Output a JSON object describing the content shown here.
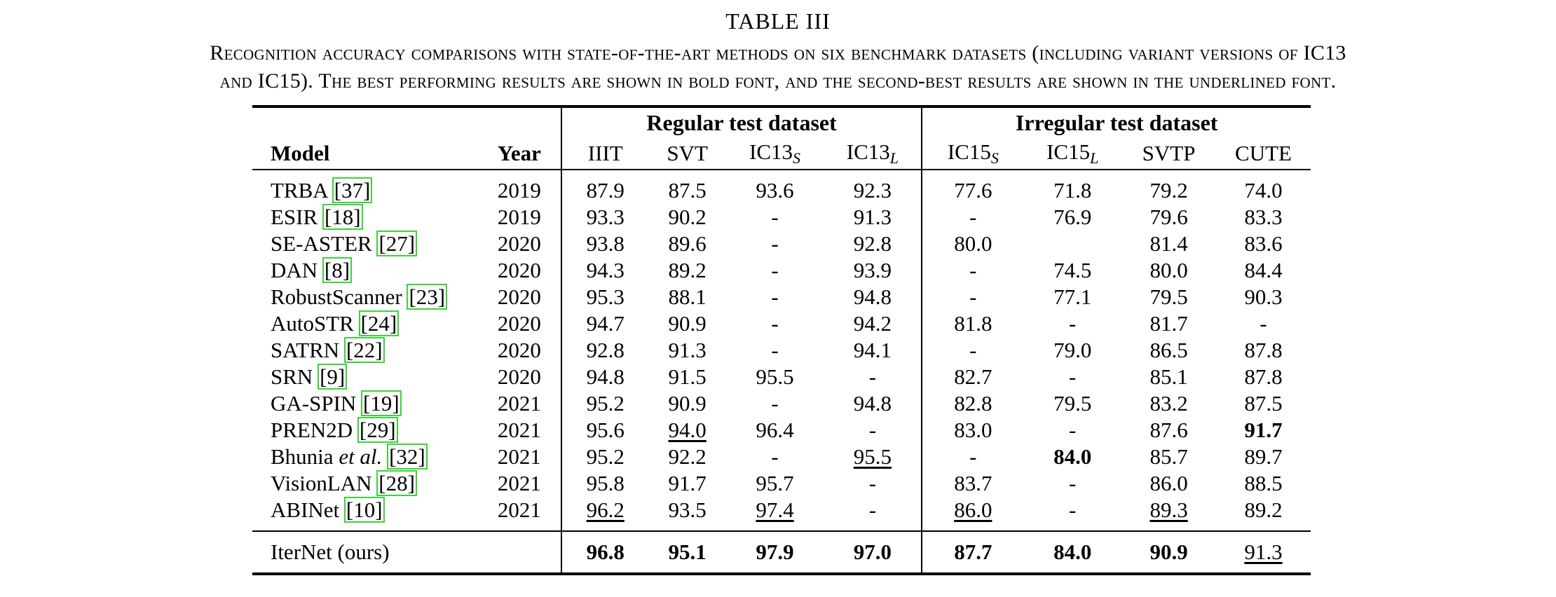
{
  "table_label": "TABLE III",
  "caption_line1": "Recognition accuracy comparisons with state-of-the-art methods on six benchmark datasets (including variant versions of IC13",
  "caption_line2": "and IC15). The best performing results are shown in bold font, and the second-best results are shown in the underlined font.",
  "group_headers": {
    "regular": "Regular test dataset",
    "irregular": "Irregular test dataset"
  },
  "columns": {
    "model": "Model",
    "year": "Year",
    "iiit": "IIIT",
    "svt": "SVT",
    "ic13": "IC13",
    "ic13s_sub": "S",
    "ic13l_sub": "L",
    "ic15": "IC15",
    "ic15s_sub": "S",
    "ic15l_sub": "L",
    "svtp": "SVTP",
    "cute": "CUTE"
  },
  "rows": [
    {
      "name": "TRBA",
      "ref": "[37]",
      "year": "2019",
      "v": [
        "87.9",
        "87.5",
        "93.6",
        "92.3",
        "77.6",
        "71.8",
        "79.2",
        "74.0"
      ]
    },
    {
      "name": "ESIR",
      "ref": "[18]",
      "year": "2019",
      "v": [
        "93.3",
        "90.2",
        "-",
        "91.3",
        "-",
        "76.9",
        "79.6",
        "83.3"
      ]
    },
    {
      "name": "SE-ASTER",
      "ref": "[27]",
      "year": "2020",
      "v": [
        "93.8",
        "89.6",
        "-",
        "92.8",
        "80.0",
        "",
        "81.4",
        "83.6"
      ]
    },
    {
      "name": "DAN",
      "ref": "[8]",
      "year": "2020",
      "v": [
        "94.3",
        "89.2",
        "-",
        "93.9",
        "-",
        "74.5",
        "80.0",
        "84.4"
      ]
    },
    {
      "name": "RobustScanner",
      "ref": "[23]",
      "year": "2020",
      "v": [
        "95.3",
        "88.1",
        "-",
        "94.8",
        "-",
        "77.1",
        "79.5",
        "90.3"
      ]
    },
    {
      "name": "AutoSTR",
      "ref": "[24]",
      "year": "2020",
      "v": [
        "94.7",
        "90.9",
        "-",
        "94.2",
        "81.8",
        "-",
        "81.7",
        "-"
      ]
    },
    {
      "name": "SATRN",
      "ref": "[22]",
      "year": "2020",
      "v": [
        "92.8",
        "91.3",
        "-",
        "94.1",
        "-",
        "79.0",
        "86.5",
        "87.8"
      ]
    },
    {
      "name": "SRN",
      "ref": "[9]",
      "year": "2020",
      "v": [
        "94.8",
        "91.5",
        "95.5",
        "-",
        "82.7",
        "-",
        "85.1",
        "87.8"
      ]
    },
    {
      "name": "GA-SPIN",
      "ref": "[19]",
      "year": "2021",
      "v": [
        "95.2",
        "90.9",
        "-",
        "94.8",
        "82.8",
        "79.5",
        "83.2",
        "87.5"
      ]
    },
    {
      "name": "PREN2D",
      "ref": "[29]",
      "year": "2021",
      "v": [
        "95.6",
        "94.0",
        "96.4",
        "-",
        "83.0",
        "-",
        "87.6",
        "91.7"
      ]
    },
    {
      "name": "Bhunia",
      "name_italic": "et al.",
      "ref": "[32]",
      "year": "2021",
      "v": [
        "95.2",
        "92.2",
        "-",
        "95.5",
        "-",
        "84.0",
        "85.7",
        "89.7"
      ]
    },
    {
      "name": "VisionLAN",
      "ref": "[28]",
      "year": "2021",
      "v": [
        "95.8",
        "91.7",
        "95.7",
        "-",
        "83.7",
        "-",
        "86.0",
        "88.5"
      ]
    },
    {
      "name": "ABINet",
      "ref": "[10]",
      "year": "2021",
      "v": [
        "96.2",
        "93.5",
        "97.4",
        "-",
        "86.0",
        "-",
        "89.3",
        "89.2"
      ]
    }
  ],
  "ours": {
    "name": "IterNet (ours)",
    "v": [
      "96.8",
      "95.1",
      "97.9",
      "97.0",
      "87.7",
      "84.0",
      "90.9",
      "91.3"
    ]
  }
}
